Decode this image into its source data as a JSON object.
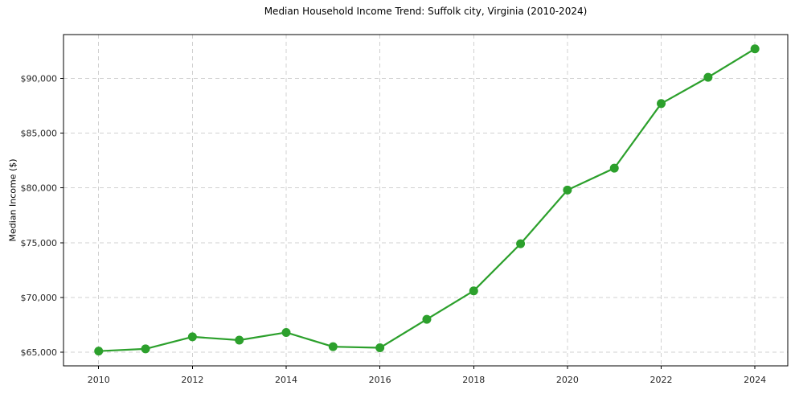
{
  "chart_data": {
    "type": "line",
    "title": "Median Household Income Trend: Suffolk city, Virginia (2010-2024)",
    "xlabel": "",
    "ylabel": "Median Income ($)",
    "series": [
      {
        "name": "Median Household Income",
        "x": [
          2010,
          2011,
          2012,
          2013,
          2014,
          2015,
          2016,
          2017,
          2018,
          2019,
          2020,
          2021,
          2022,
          2023,
          2024
        ],
        "values": [
          65100,
          65300,
          66400,
          66100,
          66800,
          65500,
          65400,
          68000,
          70600,
          74900,
          79800,
          81800,
          87700,
          90100,
          92700
        ]
      }
    ],
    "xlim": [
      2009.25,
      2024.7
    ],
    "ylim": [
      63750,
      94000
    ],
    "xticks": [
      2010,
      2012,
      2014,
      2016,
      2018,
      2020,
      2022,
      2024
    ],
    "xtick_labels": [
      "2010",
      "2012",
      "2014",
      "2016",
      "2018",
      "2020",
      "2022",
      "2024"
    ],
    "yticks": [
      65000,
      70000,
      75000,
      80000,
      85000,
      90000
    ],
    "ytick_labels": [
      "$65,000",
      "$70,000",
      "$75,000",
      "$80,000",
      "$85,000",
      "$90,000"
    ],
    "grid": "both, dashed",
    "legend": "none",
    "line_color": "#2ca02c",
    "marker": "circle",
    "grid_color": "#d0d0d0",
    "axis_color": "#000000",
    "tick_label_color": "#262626",
    "background_color": "#ffffff"
  }
}
